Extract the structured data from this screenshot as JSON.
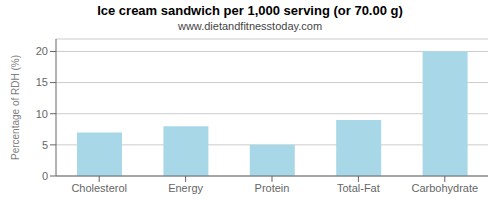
{
  "chart_data": {
    "type": "bar",
    "title": "Ice cream sandwich per 1,000 serving (or 70.00 g)",
    "subtitle": "www.dietandfitnesstoday.com",
    "categories": [
      "Cholesterol",
      "Energy",
      "Protein",
      "Total-Fat",
      "Carbohydrate"
    ],
    "values": [
      7,
      8,
      5,
      9,
      20
    ],
    "color": "#a8d8e8",
    "ylabel": "Percentage of RDH (%)",
    "ylim": [
      0,
      22
    ],
    "yticks": [
      0,
      5,
      10,
      15,
      20
    ],
    "grid": true
  }
}
